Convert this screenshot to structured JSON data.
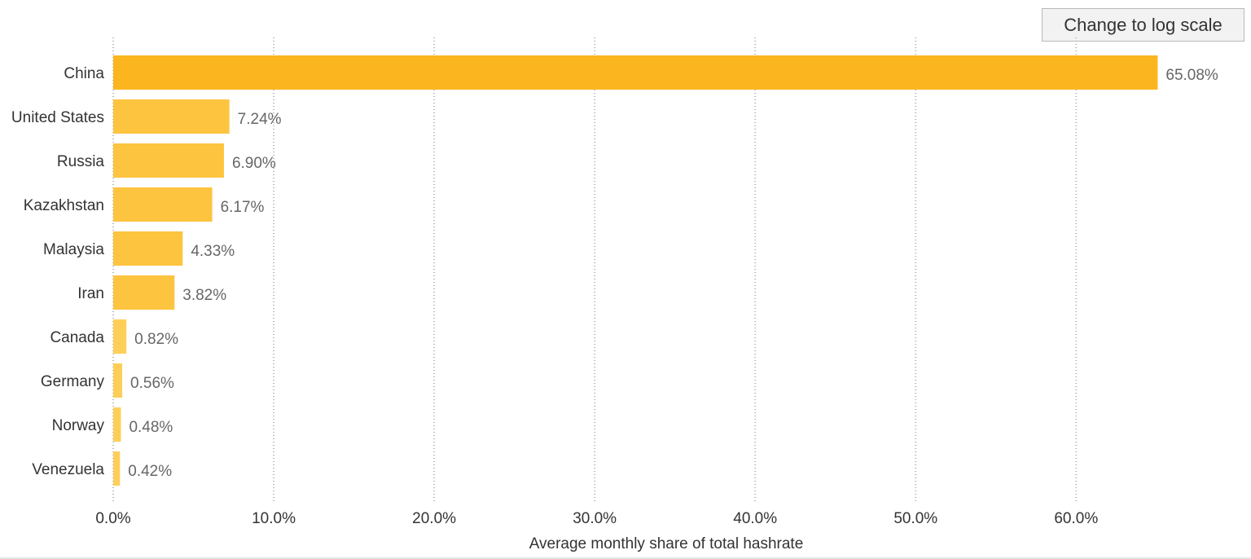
{
  "toolbar": {
    "log_scale_label": "Change to log scale"
  },
  "colors": {
    "bar_top": "#fbb51f",
    "bar_other": "#fdc43f",
    "bar_small": "#fecf58",
    "grid": "#b5b5b5",
    "label_text": "#333333",
    "value_text": "#666666"
  },
  "chart_data": {
    "type": "bar",
    "orientation": "horizontal",
    "categories": [
      "China",
      "United States",
      "Russia",
      "Kazakhstan",
      "Malaysia",
      "Iran",
      "Canada",
      "Germany",
      "Norway",
      "Venezuela"
    ],
    "values": [
      65.08,
      7.24,
      6.9,
      6.17,
      4.33,
      3.82,
      0.82,
      0.56,
      0.48,
      0.42
    ],
    "value_labels": [
      "65.08%",
      "7.24%",
      "6.90%",
      "6.17%",
      "4.33%",
      "3.82%",
      "0.82%",
      "0.56%",
      "0.48%",
      "0.42%"
    ],
    "xlabel": "Average monthly share of total hashrate",
    "ylabel": "",
    "xlim": [
      0,
      70
    ],
    "xticks": [
      0,
      10,
      20,
      30,
      40,
      50,
      60
    ],
    "xtick_labels": [
      "0.0%",
      "10.0%",
      "20.0%",
      "30.0%",
      "40.0%",
      "50.0%",
      "60.0%"
    ],
    "scale": "linear",
    "grid": "vertical dotted"
  }
}
